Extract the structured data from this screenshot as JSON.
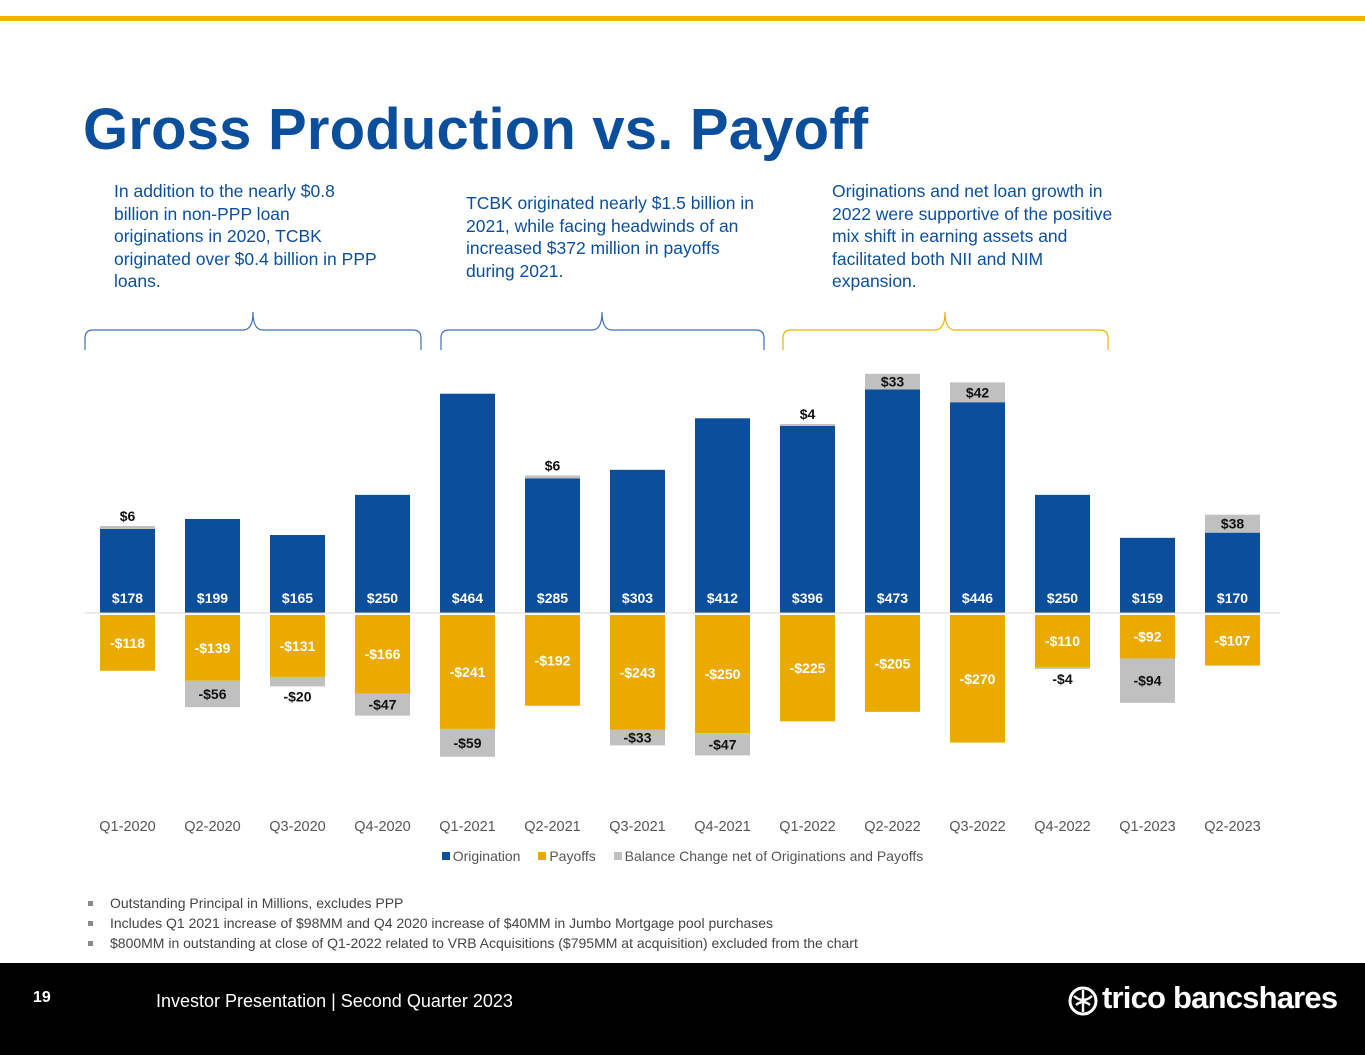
{
  "title": "Gross Production vs. Payoff",
  "callouts": [
    "In addition to the nearly $0.8 billion in non-PPP loan originations in 2020, TCBK originated over $0.4 billion in PPP loans.",
    "TCBK originated nearly $1.5 billion in 2021, while facing headwinds of an increased $372 million in payoffs during 2021.",
    "Originations and net loan growth in 2022 were supportive of the positive mix shift in earning assets and facilitated both NII and NIM expansion."
  ],
  "colors": {
    "accent": "#f0b400",
    "origination": "#0b4f9c",
    "payoffs": "#ebaa00",
    "balance": "#c0c0c0",
    "title": "#0b4f9c",
    "bracket_blue": "#3f6fb5",
    "bracket_gold": "#e8b400"
  },
  "chart_data": {
    "type": "bar",
    "stacked": true,
    "categories": [
      "Q1-2020",
      "Q2-2020",
      "Q3-2020",
      "Q4-2020",
      "Q1-2021",
      "Q2-2021",
      "Q3-2021",
      "Q4-2021",
      "Q1-2022",
      "Q2-2022",
      "Q3-2022",
      "Q4-2022",
      "Q1-2023",
      "Q2-2023"
    ],
    "series": [
      {
        "name": "Origination",
        "values": [
          178,
          199,
          165,
          250,
          464,
          285,
          303,
          412,
          396,
          473,
          446,
          250,
          159,
          170
        ],
        "labels": [
          "$178",
          "$199",
          "$165",
          "$250",
          "$464",
          "$285",
          "$303",
          "$412",
          "$396",
          "$473",
          "$446",
          "$250",
          "$159",
          "$170"
        ]
      },
      {
        "name": "Payoffs",
        "values": [
          -118,
          -139,
          -131,
          -166,
          -241,
          -192,
          -243,
          -250,
          -225,
          -205,
          -270,
          -110,
          -92,
          -107
        ],
        "labels": [
          "-$118",
          "-$139",
          "-$131",
          "-$166",
          "-$241",
          "-$192",
          "-$243",
          "-$250",
          "-$225",
          "-$205",
          "-$270",
          "-$110",
          "-$92",
          "-$107"
        ]
      },
      {
        "name": "Balance Change net of Originations and Payoffs",
        "values": [
          6,
          -56,
          -20,
          -47,
          -59,
          6,
          -33,
          -47,
          4,
          33,
          42,
          -4,
          -94,
          38
        ],
        "labels": [
          "$6",
          "-$56",
          "-$20",
          "-$47",
          "-$59",
          "$6",
          "-$33",
          "-$47",
          "$4",
          "$33",
          "$42",
          "-$4",
          "-$94",
          "$38"
        ]
      }
    ],
    "legend_position": "bottom",
    "grid": false
  },
  "notes": [
    "Outstanding Principal in Millions, excludes PPP",
    "Includes Q1 2021 increase of $98MM and Q4 2020 increase of $40MM in Jumbo Mortgage pool purchases",
    "$800MM in outstanding at close of Q1-2022 related to VRB Acquisitions ($795MM at acquisition) excluded from the chart"
  ],
  "footer": {
    "page_number": "19",
    "text": "Investor Presentation | Second Quarter 2023",
    "logo_text": "trico bancshares"
  }
}
